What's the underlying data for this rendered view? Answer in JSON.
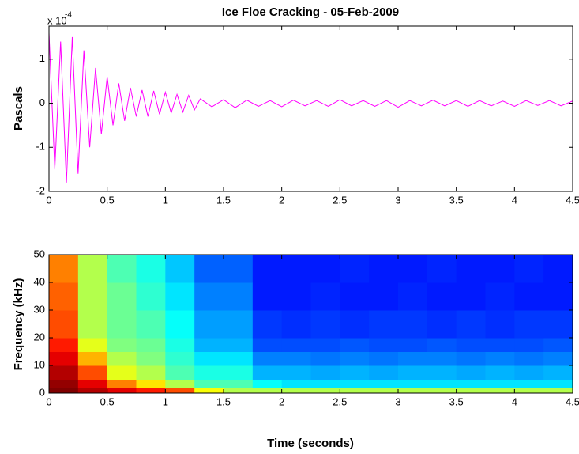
{
  "chart_data": [
    {
      "type": "line",
      "title": "Ice Floe Cracking - 05-Feb-2009",
      "ylabel": "Pascals",
      "y_multiplier": "x 10",
      "y_multiplier_exponent": "-4",
      "x": [
        0,
        0.05,
        0.1,
        0.15,
        0.2,
        0.25,
        0.3,
        0.35,
        0.4,
        0.45,
        0.5,
        0.55,
        0.6,
        0.65,
        0.7,
        0.75,
        0.8,
        0.85,
        0.9,
        0.95,
        1.0,
        1.05,
        1.1,
        1.15,
        1.2,
        1.25,
        1.3,
        1.4,
        1.5,
        1.6,
        1.7,
        1.8,
        1.9,
        2.0,
        2.1,
        2.2,
        2.3,
        2.4,
        2.5,
        2.6,
        2.7,
        2.8,
        2.9,
        3.0,
        3.1,
        3.2,
        3.3,
        3.4,
        3.5,
        3.6,
        3.7,
        3.8,
        3.9,
        4.0,
        4.1,
        4.2,
        4.3,
        4.4,
        4.5
      ],
      "series": [
        {
          "color": "#ff00ff",
          "values": [
            1.6,
            -1.5,
            1.4,
            -1.8,
            1.5,
            -1.6,
            1.2,
            -1.0,
            0.8,
            -0.7,
            0.6,
            -0.5,
            0.45,
            -0.4,
            0.35,
            -0.3,
            0.3,
            -0.3,
            0.28,
            -0.25,
            0.25,
            -0.22,
            0.2,
            -0.2,
            0.18,
            -0.15,
            0.1,
            -0.08,
            0.08,
            -0.1,
            0.07,
            -0.07,
            0.06,
            -0.08,
            0.07,
            -0.06,
            0.06,
            -0.07,
            0.08,
            -0.06,
            0.06,
            -0.07,
            0.06,
            -0.09,
            0.06,
            -0.06,
            0.07,
            -0.06,
            0.06,
            -0.07,
            0.06,
            -0.06,
            0.05,
            -0.07,
            0.06,
            -0.05,
            0.06,
            -0.06,
            0.05
          ]
        }
      ],
      "xlim": [
        0,
        4.5
      ],
      "xticks": [
        0,
        0.5,
        1,
        1.5,
        2,
        2.5,
        3,
        3.5,
        4,
        4.5
      ],
      "ylim": [
        -2,
        1.75
      ],
      "yticks": [
        -2,
        -1,
        0,
        1
      ]
    },
    {
      "type": "heatmap",
      "xlabel": "Time (seconds)",
      "ylabel": "Frequency (kHz)",
      "x_edges": [
        0,
        0.25,
        0.5,
        0.75,
        1,
        1.25,
        1.5,
        1.75,
        2,
        2.25,
        2.5,
        2.75,
        3,
        3.25,
        3.5,
        3.75,
        4,
        4.25,
        4.5
      ],
      "y_edges": [
        0,
        2,
        5,
        10,
        15,
        20,
        30,
        40,
        50
      ],
      "values": [
        [
          1.0,
          0.95,
          0.9,
          0.85,
          0.8,
          0.62,
          0.55,
          0.55,
          0.55,
          0.55,
          0.55,
          0.55,
          0.55,
          0.55,
          0.55,
          0.55,
          0.55,
          0.55
        ],
        [
          0.98,
          0.9,
          0.75,
          0.65,
          0.55,
          0.45,
          0.45,
          0.38,
          0.35,
          0.35,
          0.35,
          0.35,
          0.35,
          0.35,
          0.35,
          0.35,
          0.35,
          0.35
        ],
        [
          0.95,
          0.8,
          0.6,
          0.55,
          0.45,
          0.4,
          0.4,
          0.3,
          0.3,
          0.29,
          0.3,
          0.29,
          0.3,
          0.3,
          0.29,
          0.3,
          0.29,
          0.3
        ],
        [
          0.9,
          0.7,
          0.55,
          0.5,
          0.42,
          0.35,
          0.35,
          0.25,
          0.25,
          0.24,
          0.25,
          0.24,
          0.25,
          0.25,
          0.24,
          0.25,
          0.24,
          0.25
        ],
        [
          0.85,
          0.6,
          0.5,
          0.48,
          0.4,
          0.3,
          0.3,
          0.2,
          0.2,
          0.2,
          0.21,
          0.2,
          0.2,
          0.21,
          0.2,
          0.2,
          0.2,
          0.21
        ],
        [
          0.8,
          0.55,
          0.48,
          0.45,
          0.38,
          0.28,
          0.28,
          0.18,
          0.17,
          0.18,
          0.17,
          0.18,
          0.18,
          0.17,
          0.18,
          0.17,
          0.18,
          0.18
        ],
        [
          0.78,
          0.55,
          0.48,
          0.42,
          0.35,
          0.25,
          0.25,
          0.15,
          0.15,
          0.16,
          0.15,
          0.15,
          0.16,
          0.15,
          0.15,
          0.16,
          0.15,
          0.15
        ],
        [
          0.75,
          0.55,
          0.45,
          0.4,
          0.32,
          0.22,
          0.22,
          0.15,
          0.15,
          0.15,
          0.16,
          0.15,
          0.15,
          0.16,
          0.15,
          0.15,
          0.16,
          0.15
        ]
      ],
      "colormap": "jet",
      "xlim": [
        0,
        4.5
      ],
      "xticks": [
        0,
        0.5,
        1,
        1.5,
        2,
        2.5,
        3,
        3.5,
        4,
        4.5
      ],
      "ylim": [
        0,
        50
      ],
      "yticks": [
        0,
        10,
        20,
        30,
        40,
        50
      ]
    }
  ]
}
